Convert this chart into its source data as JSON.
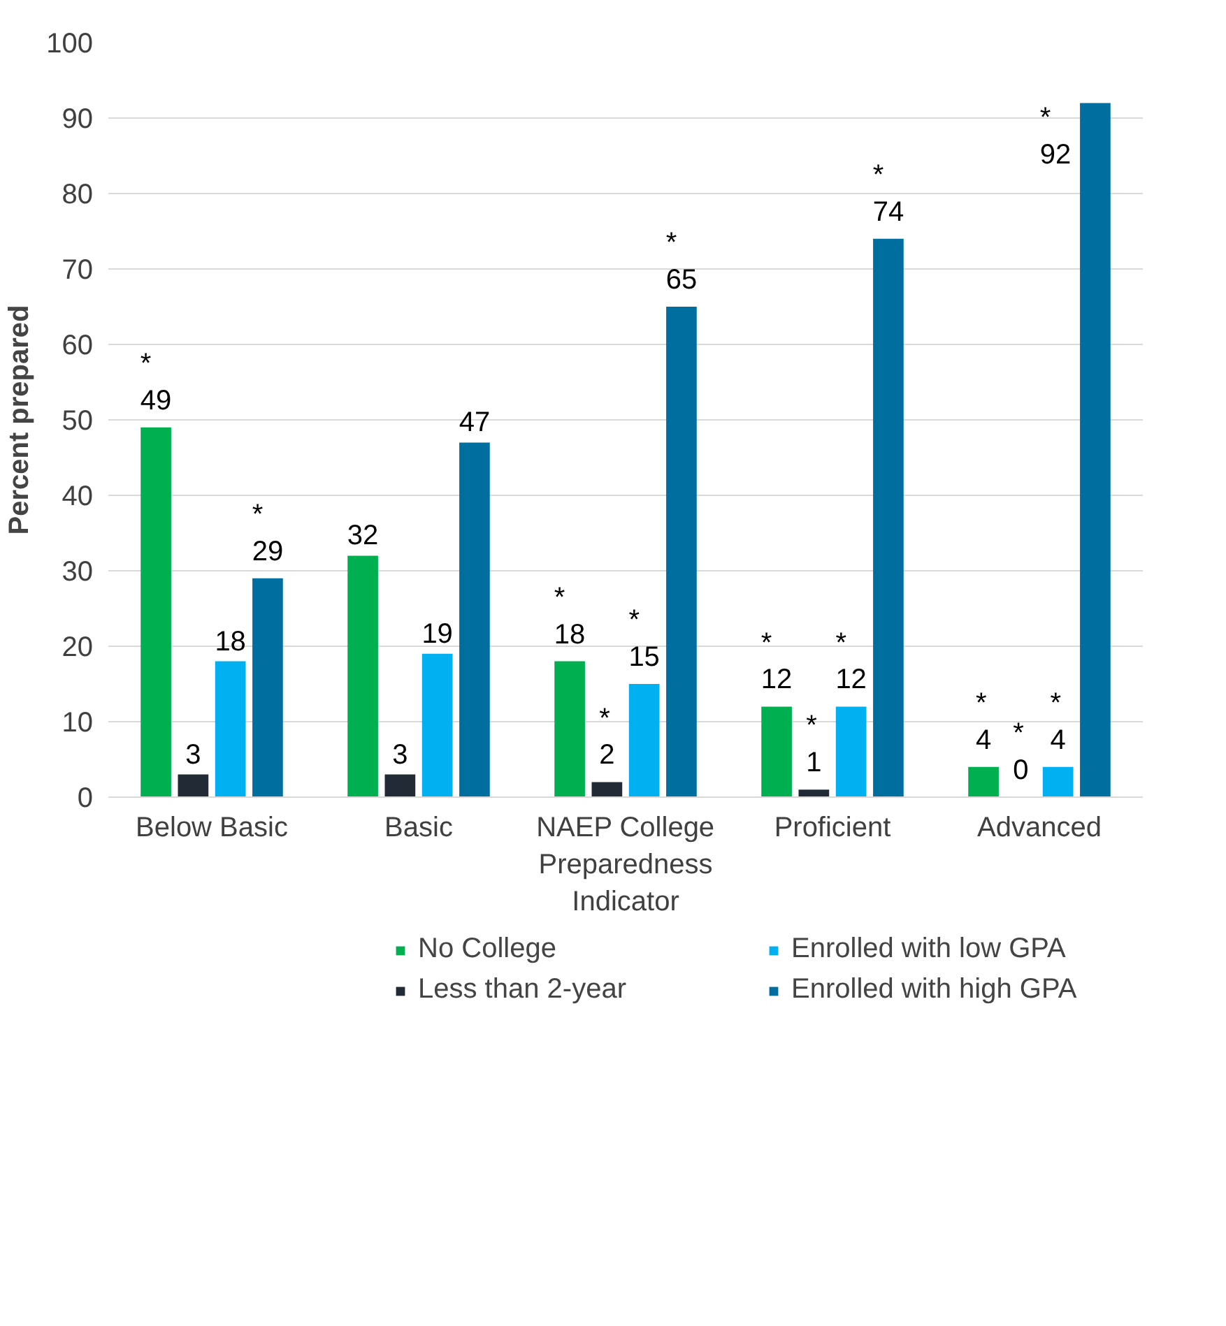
{
  "chart_data": {
    "type": "bar",
    "ylabel": "Percent prepared",
    "categories": [
      "Below Basic",
      "Basic",
      "NAEP College Preparedness Indicator",
      "Proficient",
      "Advanced"
    ],
    "series": [
      {
        "name": "No College",
        "color": "#00b050",
        "values": [
          49,
          32,
          18,
          12,
          4
        ],
        "value_labels": [
          "*\n49",
          "32",
          "*\n18",
          "*\n12",
          "*\n4"
        ]
      },
      {
        "name": "Less than 2-year",
        "color": "#222a35",
        "values": [
          3,
          3,
          2,
          1,
          0
        ],
        "value_labels": [
          "3",
          "3",
          "*\n2",
          "*\n1",
          "*\n0"
        ]
      },
      {
        "name": "Enrolled with low GPA",
        "color": "#00b0f0",
        "values": [
          18,
          19,
          15,
          12,
          4
        ],
        "value_labels": [
          "18",
          "19",
          "*\n15",
          "*\n12",
          "*\n4"
        ]
      },
      {
        "name": "Enrolled with high GPA",
        "color": "#006fa0",
        "values": [
          29,
          47,
          65,
          74,
          92
        ],
        "value_labels": [
          "*\n29",
          "47",
          "*\n65",
          "*\n74",
          "*\n92"
        ]
      }
    ],
    "ylim": [
      0,
      100
    ],
    "yticks": [
      0,
      10,
      20,
      30,
      40,
      50,
      60,
      70,
      80,
      90,
      100
    ],
    "grid": "y",
    "legend": "bottom"
  }
}
